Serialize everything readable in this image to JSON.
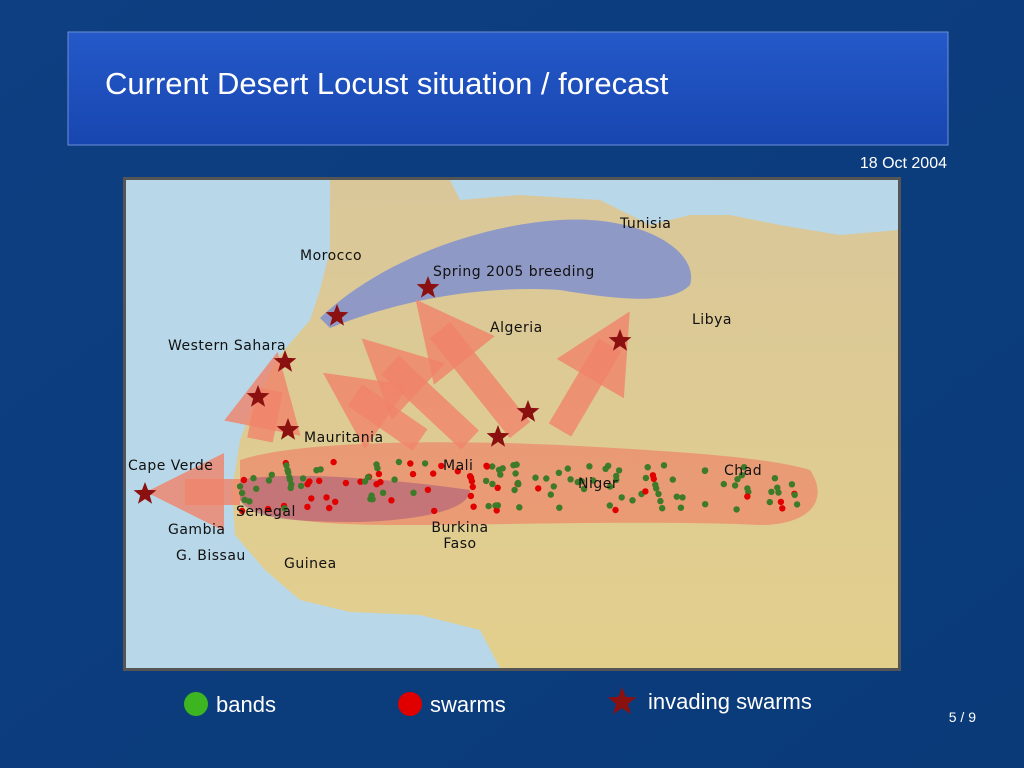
{
  "header": {
    "title": "Current Desert Locust situation / forecast",
    "date": "18 Oct 2004"
  },
  "map": {
    "labels": [
      "Tunisia",
      "Morocco",
      "Spring 2005 breeding",
      "Algeria",
      "Libya",
      "Western Sahara",
      "Mauritania",
      "Mali",
      "Cape Verde",
      "Niger",
      "Chad",
      "Senegal",
      "Gambia",
      "G. Bissau",
      "Guinea",
      "Burkina Faso"
    ]
  },
  "legend": {
    "items": [
      {
        "label": "bands"
      },
      {
        "label": "swarms"
      },
      {
        "label": "invading swarms"
      }
    ]
  },
  "footer": {
    "page": "5 / 9"
  }
}
